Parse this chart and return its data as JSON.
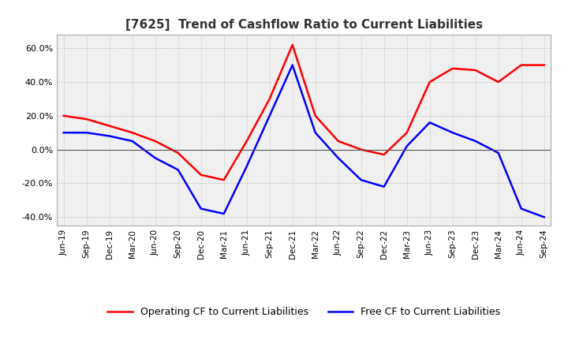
{
  "title": "[7625]  Trend of Cashflow Ratio to Current Liabilities",
  "x_labels": [
    "Jun-19",
    "Sep-19",
    "Dec-19",
    "Mar-20",
    "Jun-20",
    "Sep-20",
    "Dec-20",
    "Mar-21",
    "Jun-21",
    "Sep-21",
    "Dec-21",
    "Mar-22",
    "Jun-22",
    "Sep-22",
    "Dec-22",
    "Mar-23",
    "Jun-23",
    "Sep-23",
    "Dec-23",
    "Mar-24",
    "Jun-24",
    "Sep-24"
  ],
  "operating_cf": [
    20.0,
    18.0,
    14.0,
    10.0,
    5.0,
    -2.0,
    -15.0,
    -18.0,
    5.0,
    30.0,
    62.0,
    20.0,
    5.0,
    0.0,
    -3.0,
    10.0,
    40.0,
    48.0,
    47.0,
    40.0,
    50.0,
    50.0
  ],
  "free_cf": [
    10.0,
    10.0,
    8.0,
    5.0,
    -5.0,
    -12.0,
    -35.0,
    -38.0,
    -10.0,
    20.0,
    50.0,
    10.0,
    -5.0,
    -18.0,
    -22.0,
    2.0,
    16.0,
    10.0,
    5.0,
    -2.0,
    -35.0,
    -40.0
  ],
  "operating_color": "#ff0000",
  "free_color": "#0000ff",
  "ylim": [
    -45,
    68
  ],
  "yticks": [
    -40,
    -20,
    0,
    20,
    40,
    60
  ],
  "background_color": "#ffffff",
  "plot_bg_color": "#f0f0f0",
  "grid_color": "#aaaaaa",
  "legend_labels": [
    "Operating CF to Current Liabilities",
    "Free CF to Current Liabilities"
  ]
}
